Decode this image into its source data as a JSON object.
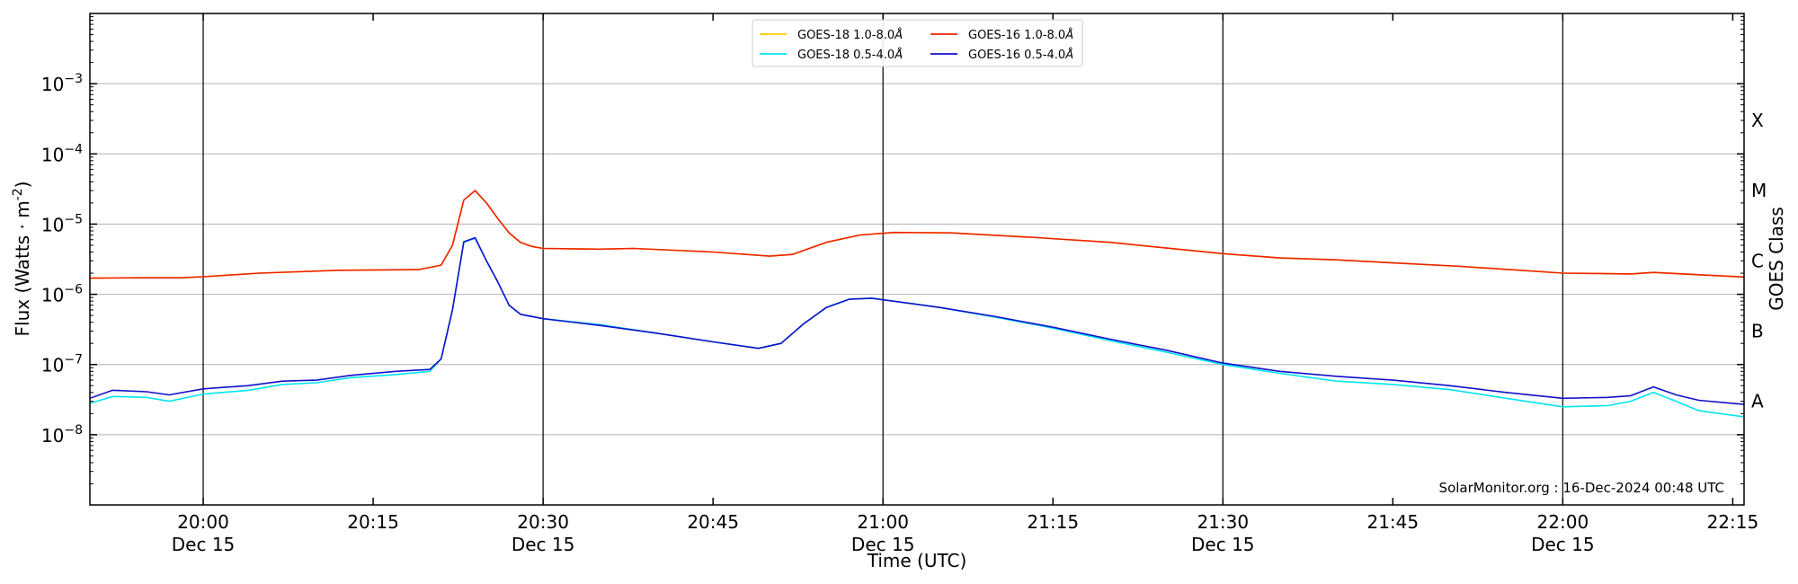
{
  "chart_data": {
    "type": "line",
    "xlabel": "Time (UTC)",
    "ylabel": "Flux (Watts · m",
    "ylabel_superscript": "-2",
    "ylabel_close": ")",
    "right_ylabel": "GOES Class",
    "credit": "SolarMonitor.org : 16-Dec-2024 00:48 UTC",
    "y_scale": "log",
    "ylim": [
      1e-09,
      0.01
    ],
    "xlim": [
      "2024-12-15 19:50",
      "2024-12-15 22:16"
    ],
    "grid": "horizontal at decades",
    "legend_placement": "top-center",
    "y_ticks": [
      {
        "base": "10",
        "exp": "−3",
        "value": 0.001
      },
      {
        "base": "10",
        "exp": "−4",
        "value": 0.0001
      },
      {
        "base": "10",
        "exp": "−5",
        "value": 1e-05
      },
      {
        "base": "10",
        "exp": "−6",
        "value": 1e-06
      },
      {
        "base": "10",
        "exp": "−7",
        "value": 1e-07
      },
      {
        "base": "10",
        "exp": "−8",
        "value": 1e-08
      }
    ],
    "goes_classes": [
      {
        "label": "X",
        "value": 0.0003
      },
      {
        "label": "M",
        "value": 3e-05
      },
      {
        "label": "C",
        "value": 3e-06
      },
      {
        "label": "B",
        "value": 3e-07
      },
      {
        "label": "A",
        "value": 3e-08
      }
    ],
    "x_ticks": [
      {
        "time": "20:00",
        "date": "Dec 15",
        "minute": 10,
        "vline": true
      },
      {
        "time": "20:15",
        "date": "",
        "minute": 25,
        "vline": false
      },
      {
        "time": "20:30",
        "date": "Dec 15",
        "minute": 40,
        "vline": true
      },
      {
        "time": "20:45",
        "date": "",
        "minute": 55,
        "vline": false
      },
      {
        "time": "21:00",
        "date": "Dec 15",
        "minute": 70,
        "vline": true
      },
      {
        "time": "21:15",
        "date": "",
        "minute": 85,
        "vline": false
      },
      {
        "time": "21:30",
        "date": "Dec 15",
        "minute": 100,
        "vline": true
      },
      {
        "time": "21:45",
        "date": "",
        "minute": 115,
        "vline": false
      },
      {
        "time": "22:00",
        "date": "Dec 15",
        "minute": 130,
        "vline": true
      },
      {
        "time": "22:15",
        "date": "",
        "minute": 145,
        "vline": false
      }
    ],
    "legend": [
      {
        "name": "GOES-18 1.0-8.0",
        "unit": "Å",
        "color": "#ffcc00"
      },
      {
        "name": "GOES-18 0.5-4.0",
        "unit": "Å",
        "color": "#00e5ee"
      },
      {
        "name": "GOES-16 1.0-8.0",
        "unit": "Å",
        "color": "#ee2200"
      },
      {
        "name": "GOES-16 0.5-4.0",
        "unit": "Å",
        "color": "#1010cc"
      }
    ],
    "x_unit": "minutes since 19:50 UTC",
    "series": [
      {
        "name": "GOES-18 1.0-8.0",
        "color": "#ffcc00",
        "points": [
          [
            0,
            1.7e-06
          ],
          [
            4,
            1.72e-06
          ],
          [
            8,
            1.72e-06
          ],
          [
            10,
            1.78e-06
          ],
          [
            15,
            2e-06
          ],
          [
            22,
            2.2e-06
          ],
          [
            29,
            2.25e-06
          ],
          [
            31,
            2.6e-06
          ],
          [
            32,
            5e-06
          ],
          [
            33,
            2.2e-05
          ],
          [
            34,
            3e-05
          ],
          [
            35,
            2e-05
          ],
          [
            36,
            1.2e-05
          ],
          [
            37,
            7.5e-06
          ],
          [
            38,
            5.5e-06
          ],
          [
            39,
            4.8e-06
          ],
          [
            40,
            4.5e-06
          ],
          [
            45,
            4.4e-06
          ],
          [
            48,
            4.5e-06
          ],
          [
            55,
            4e-06
          ],
          [
            60,
            3.5e-06
          ],
          [
            62,
            3.7e-06
          ],
          [
            65,
            5.5e-06
          ],
          [
            68,
            7e-06
          ],
          [
            71,
            7.6e-06
          ],
          [
            76,
            7.5e-06
          ],
          [
            83,
            6.5e-06
          ],
          [
            90,
            5.5e-06
          ],
          [
            100,
            3.8e-06
          ],
          [
            105,
            3.3e-06
          ],
          [
            110,
            3.1e-06
          ],
          [
            115,
            2.8e-06
          ],
          [
            121,
            2.5e-06
          ],
          [
            130,
            2e-06
          ],
          [
            136,
            1.95e-06
          ],
          [
            138,
            2.05e-06
          ],
          [
            142,
            1.9e-06
          ],
          [
            148,
            1.7e-06
          ]
        ]
      },
      {
        "name": "GOES-16 1.0-8.0",
        "color": "#ee2200",
        "points": [
          [
            0,
            1.7e-06
          ],
          [
            4,
            1.72e-06
          ],
          [
            8,
            1.72e-06
          ],
          [
            10,
            1.78e-06
          ],
          [
            15,
            2e-06
          ],
          [
            22,
            2.2e-06
          ],
          [
            29,
            2.25e-06
          ],
          [
            31,
            2.6e-06
          ],
          [
            32,
            5e-06
          ],
          [
            33,
            2.2e-05
          ],
          [
            34,
            3e-05
          ],
          [
            35,
            2e-05
          ],
          [
            36,
            1.2e-05
          ],
          [
            37,
            7.5e-06
          ],
          [
            38,
            5.5e-06
          ],
          [
            39,
            4.8e-06
          ],
          [
            40,
            4.5e-06
          ],
          [
            45,
            4.4e-06
          ],
          [
            48,
            4.5e-06
          ],
          [
            55,
            4e-06
          ],
          [
            60,
            3.5e-06
          ],
          [
            62,
            3.7e-06
          ],
          [
            65,
            5.5e-06
          ],
          [
            68,
            7e-06
          ],
          [
            71,
            7.6e-06
          ],
          [
            76,
            7.5e-06
          ],
          [
            83,
            6.5e-06
          ],
          [
            90,
            5.5e-06
          ],
          [
            100,
            3.8e-06
          ],
          [
            105,
            3.3e-06
          ],
          [
            110,
            3.1e-06
          ],
          [
            115,
            2.8e-06
          ],
          [
            121,
            2.5e-06
          ],
          [
            130,
            2e-06
          ],
          [
            136,
            1.95e-06
          ],
          [
            138,
            2.05e-06
          ],
          [
            142,
            1.9e-06
          ],
          [
            148,
            1.7e-06
          ]
        ]
      },
      {
        "name": "GOES-18 0.5-4.0",
        "color": "#00e5ee",
        "points": [
          [
            0,
            2.8e-08
          ],
          [
            2,
            3.5e-08
          ],
          [
            5,
            3.4e-08
          ],
          [
            7,
            3e-08
          ],
          [
            10,
            3.8e-08
          ],
          [
            14,
            4.3e-08
          ],
          [
            17,
            5.2e-08
          ],
          [
            20,
            5.5e-08
          ],
          [
            23,
            6.5e-08
          ],
          [
            27,
            7.2e-08
          ],
          [
            30,
            8e-08
          ],
          [
            31,
            1.2e-07
          ],
          [
            32,
            6e-07
          ],
          [
            33,
            5.5e-06
          ],
          [
            34,
            6.3e-06
          ],
          [
            35,
            3e-06
          ],
          [
            36,
            1.5e-06
          ],
          [
            37,
            7e-07
          ],
          [
            38,
            5.2e-07
          ],
          [
            40,
            4.5e-07
          ],
          [
            45,
            3.7e-07
          ],
          [
            50,
            2.8e-07
          ],
          [
            55,
            2.1e-07
          ],
          [
            59,
            1.7e-07
          ],
          [
            61,
            2e-07
          ],
          [
            63,
            3.8e-07
          ],
          [
            65,
            6.5e-07
          ],
          [
            67,
            8.5e-07
          ],
          [
            69,
            8.8e-07
          ],
          [
            75,
            6.5e-07
          ],
          [
            80,
            4.7e-07
          ],
          [
            85,
            3.3e-07
          ],
          [
            90,
            2.2e-07
          ],
          [
            95,
            1.5e-07
          ],
          [
            100,
            1e-07
          ],
          [
            105,
            7.5e-08
          ],
          [
            110,
            5.8e-08
          ],
          [
            115,
            5.2e-08
          ],
          [
            120,
            4.4e-08
          ],
          [
            125,
            3.3e-08
          ],
          [
            130,
            2.5e-08
          ],
          [
            134,
            2.6e-08
          ],
          [
            136,
            3e-08
          ],
          [
            138,
            4e-08
          ],
          [
            140,
            3e-08
          ],
          [
            142,
            2.2e-08
          ],
          [
            146,
            1.8e-08
          ],
          [
            148,
            1.9e-08
          ]
        ]
      },
      {
        "name": "GOES-16 0.5-4.0",
        "color": "#1010cc",
        "points": [
          [
            0,
            3.3e-08
          ],
          [
            2,
            4.3e-08
          ],
          [
            5,
            4.1e-08
          ],
          [
            7,
            3.7e-08
          ],
          [
            10,
            4.5e-08
          ],
          [
            14,
            5e-08
          ],
          [
            17,
            5.8e-08
          ],
          [
            20,
            6e-08
          ],
          [
            23,
            7e-08
          ],
          [
            27,
            8e-08
          ],
          [
            30,
            8.5e-08
          ],
          [
            31,
            1.2e-07
          ],
          [
            32,
            6e-07
          ],
          [
            33,
            5.6e-06
          ],
          [
            34,
            6.4e-06
          ],
          [
            35,
            3e-06
          ],
          [
            36,
            1.5e-06
          ],
          [
            37,
            7e-07
          ],
          [
            38,
            5.2e-07
          ],
          [
            40,
            4.5e-07
          ],
          [
            45,
            3.6e-07
          ],
          [
            50,
            2.8e-07
          ],
          [
            55,
            2.1e-07
          ],
          [
            59,
            1.7e-07
          ],
          [
            61,
            2e-07
          ],
          [
            63,
            3.8e-07
          ],
          [
            65,
            6.5e-07
          ],
          [
            67,
            8.5e-07
          ],
          [
            69,
            8.8e-07
          ],
          [
            75,
            6.5e-07
          ],
          [
            80,
            4.8e-07
          ],
          [
            85,
            3.4e-07
          ],
          [
            90,
            2.3e-07
          ],
          [
            95,
            1.6e-07
          ],
          [
            100,
            1.05e-07
          ],
          [
            105,
            8e-08
          ],
          [
            110,
            6.8e-08
          ],
          [
            115,
            6e-08
          ],
          [
            120,
            5e-08
          ],
          [
            125,
            4e-08
          ],
          [
            130,
            3.3e-08
          ],
          [
            134,
            3.4e-08
          ],
          [
            136,
            3.6e-08
          ],
          [
            138,
            4.8e-08
          ],
          [
            140,
            3.7e-08
          ],
          [
            142,
            3.1e-08
          ],
          [
            146,
            2.7e-08
          ],
          [
            148,
            2.6e-08
          ]
        ]
      }
    ]
  }
}
